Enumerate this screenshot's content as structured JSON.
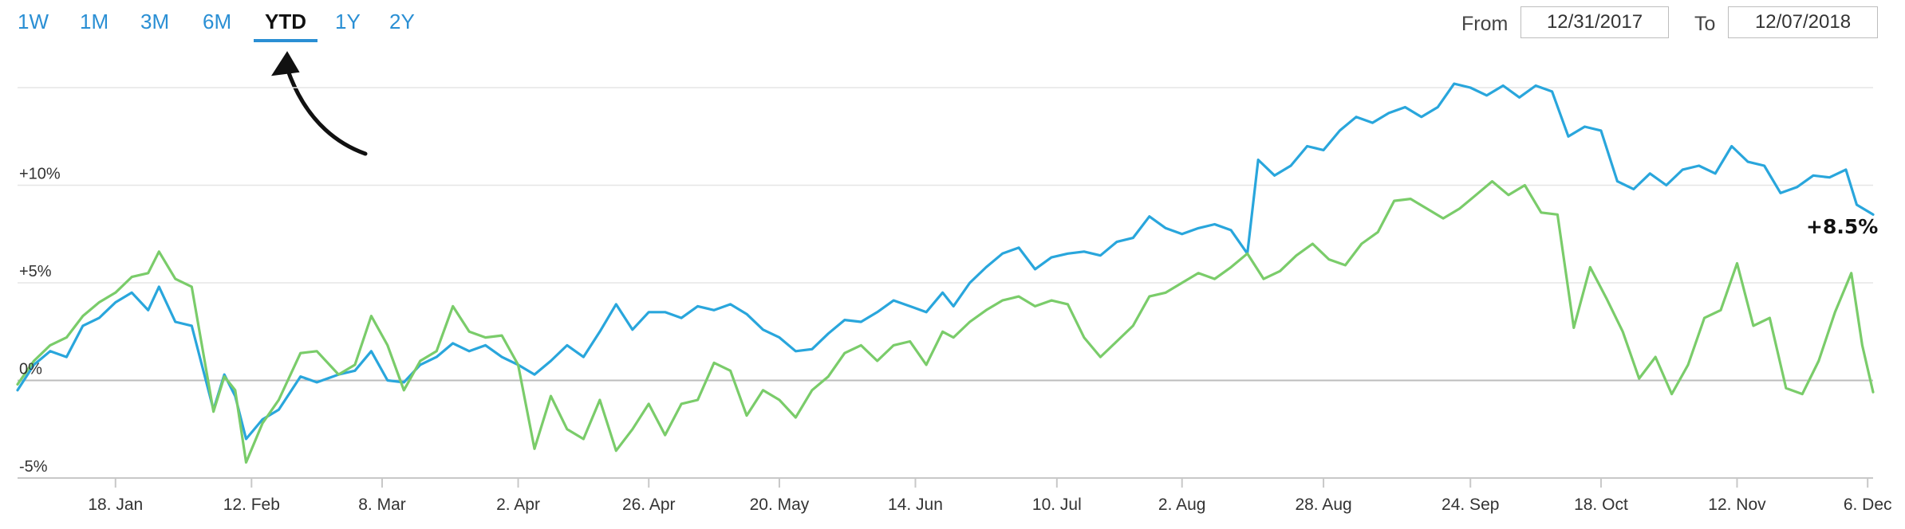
{
  "range_tabs": [
    {
      "label": "1W",
      "active": false
    },
    {
      "label": "1M",
      "active": false
    },
    {
      "label": "3M",
      "active": false
    },
    {
      "label": "6M",
      "active": false
    },
    {
      "label": "YTD",
      "active": true
    },
    {
      "label": "1Y",
      "active": false
    },
    {
      "label": "2Y",
      "active": false
    }
  ],
  "date_range": {
    "from_label": "From",
    "from_value": "12/31/2017",
    "to_label": "To",
    "to_value": "12/07/2018"
  },
  "colors": {
    "series_blue": "#29a6dc",
    "series_green": "#7acc6a",
    "tab_link": "#2a8fd4",
    "grid": "#e6e6e6",
    "zero_line": "#bdbdbd"
  },
  "chart_data": {
    "type": "line",
    "title": "",
    "xlabel": "",
    "ylabel": "",
    "x_range": [
      "2017-12-31",
      "2018-12-07"
    ],
    "ylim": [
      -5,
      15
    ],
    "y_ticks": [
      {
        "value": -5,
        "label": "-5%"
      },
      {
        "value": 0,
        "label": "0%"
      },
      {
        "value": 5,
        "label": "+5%"
      },
      {
        "value": 10,
        "label": "+10%"
      }
    ],
    "x_ticks": [
      {
        "date": "2018-01-18",
        "label": "18. Jan"
      },
      {
        "date": "2018-02-12",
        "label": "12. Feb"
      },
      {
        "date": "2018-03-08",
        "label": "8. Mar"
      },
      {
        "date": "2018-04-02",
        "label": "2. Apr"
      },
      {
        "date": "2018-04-26",
        "label": "26. Apr"
      },
      {
        "date": "2018-05-20",
        "label": "20. May"
      },
      {
        "date": "2018-06-14",
        "label": "14. Jun"
      },
      {
        "date": "2018-07-10",
        "label": "10. Jul"
      },
      {
        "date": "2018-08-02",
        "label": "2. Aug"
      },
      {
        "date": "2018-08-28",
        "label": "28. Aug"
      },
      {
        "date": "2018-09-24",
        "label": "24. Sep"
      },
      {
        "date": "2018-10-18",
        "label": "18. Oct"
      },
      {
        "date": "2018-11-12",
        "label": "12. Nov"
      },
      {
        "date": "2018-12-06",
        "label": "6. Dec"
      }
    ],
    "grid": true,
    "legend": "none",
    "end_label": "+8.5%",
    "series": [
      {
        "color": "#29a6dc",
        "points": [
          [
            "2017-12-31",
            -0.5
          ],
          [
            "2018-01-03",
            0.8
          ],
          [
            "2018-01-06",
            1.5
          ],
          [
            "2018-01-09",
            1.2
          ],
          [
            "2018-01-12",
            2.8
          ],
          [
            "2018-01-15",
            3.2
          ],
          [
            "2018-01-18",
            4.0
          ],
          [
            "2018-01-21",
            4.5
          ],
          [
            "2018-01-24",
            3.6
          ],
          [
            "2018-01-26",
            4.8
          ],
          [
            "2018-01-29",
            3.0
          ],
          [
            "2018-02-01",
            2.8
          ],
          [
            "2018-02-05",
            -1.5
          ],
          [
            "2018-02-07",
            0.3
          ],
          [
            "2018-02-09",
            -0.8
          ],
          [
            "2018-02-11",
            -3.0
          ],
          [
            "2018-02-14",
            -2.0
          ],
          [
            "2018-02-17",
            -1.5
          ],
          [
            "2018-02-21",
            0.2
          ],
          [
            "2018-02-24",
            -0.1
          ],
          [
            "2018-02-28",
            0.3
          ],
          [
            "2018-03-03",
            0.5
          ],
          [
            "2018-03-06",
            1.5
          ],
          [
            "2018-03-09",
            0.0
          ],
          [
            "2018-03-12",
            -0.1
          ],
          [
            "2018-03-15",
            0.8
          ],
          [
            "2018-03-18",
            1.2
          ],
          [
            "2018-03-21",
            1.9
          ],
          [
            "2018-03-24",
            1.5
          ],
          [
            "2018-03-27",
            1.8
          ],
          [
            "2018-03-30",
            1.2
          ],
          [
            "2018-04-02",
            0.8
          ],
          [
            "2018-04-05",
            0.3
          ],
          [
            "2018-04-08",
            1.0
          ],
          [
            "2018-04-11",
            1.8
          ],
          [
            "2018-04-14",
            1.2
          ],
          [
            "2018-04-17",
            2.5
          ],
          [
            "2018-04-20",
            3.9
          ],
          [
            "2018-04-23",
            2.6
          ],
          [
            "2018-04-26",
            3.5
          ],
          [
            "2018-04-29",
            3.5
          ],
          [
            "2018-05-02",
            3.2
          ],
          [
            "2018-05-05",
            3.8
          ],
          [
            "2018-05-08",
            3.6
          ],
          [
            "2018-05-11",
            3.9
          ],
          [
            "2018-05-14",
            3.4
          ],
          [
            "2018-05-17",
            2.6
          ],
          [
            "2018-05-20",
            2.2
          ],
          [
            "2018-05-23",
            1.5
          ],
          [
            "2018-05-26",
            1.6
          ],
          [
            "2018-05-29",
            2.4
          ],
          [
            "2018-06-01",
            3.1
          ],
          [
            "2018-06-04",
            3.0
          ],
          [
            "2018-06-07",
            3.5
          ],
          [
            "2018-06-10",
            4.1
          ],
          [
            "2018-06-13",
            3.8
          ],
          [
            "2018-06-16",
            3.5
          ],
          [
            "2018-06-19",
            4.5
          ],
          [
            "2018-06-21",
            3.8
          ],
          [
            "2018-06-24",
            5.0
          ],
          [
            "2018-06-27",
            5.8
          ],
          [
            "2018-06-30",
            6.5
          ],
          [
            "2018-07-03",
            6.8
          ],
          [
            "2018-07-06",
            5.7
          ],
          [
            "2018-07-09",
            6.3
          ],
          [
            "2018-07-12",
            6.5
          ],
          [
            "2018-07-15",
            6.6
          ],
          [
            "2018-07-18",
            6.4
          ],
          [
            "2018-07-21",
            7.1
          ],
          [
            "2018-07-24",
            7.3
          ],
          [
            "2018-07-27",
            8.4
          ],
          [
            "2018-07-30",
            7.8
          ],
          [
            "2018-08-02",
            7.5
          ],
          [
            "2018-08-05",
            7.8
          ],
          [
            "2018-08-08",
            8.0
          ],
          [
            "2018-08-11",
            7.7
          ],
          [
            "2018-08-14",
            6.5
          ],
          [
            "2018-08-16",
            11.3
          ],
          [
            "2018-08-19",
            10.5
          ],
          [
            "2018-08-22",
            11.0
          ],
          [
            "2018-08-25",
            12.0
          ],
          [
            "2018-08-28",
            11.8
          ],
          [
            "2018-08-31",
            12.8
          ],
          [
            "2018-09-03",
            13.5
          ],
          [
            "2018-09-06",
            13.2
          ],
          [
            "2018-09-09",
            13.7
          ],
          [
            "2018-09-12",
            14.0
          ],
          [
            "2018-09-15",
            13.5
          ],
          [
            "2018-09-18",
            14.0
          ],
          [
            "2018-09-21",
            15.2
          ],
          [
            "2018-09-24",
            15.0
          ],
          [
            "2018-09-27",
            14.6
          ],
          [
            "2018-09-30",
            15.1
          ],
          [
            "2018-10-03",
            14.5
          ],
          [
            "2018-10-06",
            15.1
          ],
          [
            "2018-10-09",
            14.8
          ],
          [
            "2018-10-12",
            12.5
          ],
          [
            "2018-10-15",
            13.0
          ],
          [
            "2018-10-18",
            12.8
          ],
          [
            "2018-10-21",
            10.2
          ],
          [
            "2018-10-24",
            9.8
          ],
          [
            "2018-10-27",
            10.6
          ],
          [
            "2018-10-30",
            10.0
          ],
          [
            "2018-11-02",
            10.8
          ],
          [
            "2018-11-05",
            11.0
          ],
          [
            "2018-11-08",
            10.6
          ],
          [
            "2018-11-11",
            12.0
          ],
          [
            "2018-11-14",
            11.2
          ],
          [
            "2018-11-17",
            11.0
          ],
          [
            "2018-11-20",
            9.6
          ],
          [
            "2018-11-23",
            9.9
          ],
          [
            "2018-11-26",
            10.5
          ],
          [
            "2018-11-29",
            10.4
          ],
          [
            "2018-12-02",
            10.8
          ],
          [
            "2018-12-04",
            9.0
          ],
          [
            "2018-12-07",
            8.5
          ]
        ]
      },
      {
        "color": "#7acc6a",
        "points": [
          [
            "2017-12-31",
            -0.2
          ],
          [
            "2018-01-03",
            1.0
          ],
          [
            "2018-01-06",
            1.8
          ],
          [
            "2018-01-09",
            2.2
          ],
          [
            "2018-01-12",
            3.3
          ],
          [
            "2018-01-15",
            4.0
          ],
          [
            "2018-01-18",
            4.5
          ],
          [
            "2018-01-21",
            5.3
          ],
          [
            "2018-01-24",
            5.5
          ],
          [
            "2018-01-26",
            6.6
          ],
          [
            "2018-01-29",
            5.2
          ],
          [
            "2018-02-01",
            4.8
          ],
          [
            "2018-02-05",
            -1.6
          ],
          [
            "2018-02-07",
            0.2
          ],
          [
            "2018-02-09",
            -0.5
          ],
          [
            "2018-02-11",
            -4.2
          ],
          [
            "2018-02-14",
            -2.2
          ],
          [
            "2018-02-17",
            -1.0
          ],
          [
            "2018-02-21",
            1.4
          ],
          [
            "2018-02-24",
            1.5
          ],
          [
            "2018-02-28",
            0.3
          ],
          [
            "2018-03-03",
            0.8
          ],
          [
            "2018-03-06",
            3.3
          ],
          [
            "2018-03-09",
            1.8
          ],
          [
            "2018-03-12",
            -0.5
          ],
          [
            "2018-03-15",
            1.0
          ],
          [
            "2018-03-18",
            1.5
          ],
          [
            "2018-03-21",
            3.8
          ],
          [
            "2018-03-24",
            2.5
          ],
          [
            "2018-03-27",
            2.2
          ],
          [
            "2018-03-30",
            2.3
          ],
          [
            "2018-04-02",
            0.8
          ],
          [
            "2018-04-05",
            -3.5
          ],
          [
            "2018-04-08",
            -0.8
          ],
          [
            "2018-04-11",
            -2.5
          ],
          [
            "2018-04-14",
            -3.0
          ],
          [
            "2018-04-17",
            -1.0
          ],
          [
            "2018-04-20",
            -3.6
          ],
          [
            "2018-04-23",
            -2.5
          ],
          [
            "2018-04-26",
            -1.2
          ],
          [
            "2018-04-29",
            -2.8
          ],
          [
            "2018-05-02",
            -1.2
          ],
          [
            "2018-05-05",
            -1.0
          ],
          [
            "2018-05-08",
            0.9
          ],
          [
            "2018-05-11",
            0.5
          ],
          [
            "2018-05-14",
            -1.8
          ],
          [
            "2018-05-17",
            -0.5
          ],
          [
            "2018-05-20",
            -1.0
          ],
          [
            "2018-05-23",
            -1.9
          ],
          [
            "2018-05-26",
            -0.5
          ],
          [
            "2018-05-29",
            0.2
          ],
          [
            "2018-06-01",
            1.4
          ],
          [
            "2018-06-04",
            1.8
          ],
          [
            "2018-06-07",
            1.0
          ],
          [
            "2018-06-10",
            1.8
          ],
          [
            "2018-06-13",
            2.0
          ],
          [
            "2018-06-16",
            0.8
          ],
          [
            "2018-06-19",
            2.5
          ],
          [
            "2018-06-21",
            2.2
          ],
          [
            "2018-06-24",
            3.0
          ],
          [
            "2018-06-27",
            3.6
          ],
          [
            "2018-06-30",
            4.1
          ],
          [
            "2018-07-03",
            4.3
          ],
          [
            "2018-07-06",
            3.8
          ],
          [
            "2018-07-09",
            4.1
          ],
          [
            "2018-07-12",
            3.9
          ],
          [
            "2018-07-15",
            2.2
          ],
          [
            "2018-07-18",
            1.2
          ],
          [
            "2018-07-21",
            2.0
          ],
          [
            "2018-07-24",
            2.8
          ],
          [
            "2018-07-27",
            4.3
          ],
          [
            "2018-07-30",
            4.5
          ],
          [
            "2018-08-02",
            5.0
          ],
          [
            "2018-08-05",
            5.5
          ],
          [
            "2018-08-08",
            5.2
          ],
          [
            "2018-08-11",
            5.8
          ],
          [
            "2018-08-14",
            6.5
          ],
          [
            "2018-08-17",
            5.2
          ],
          [
            "2018-08-20",
            5.6
          ],
          [
            "2018-08-23",
            6.4
          ],
          [
            "2018-08-26",
            7.0
          ],
          [
            "2018-08-29",
            6.2
          ],
          [
            "2018-09-01",
            5.9
          ],
          [
            "2018-09-04",
            7.0
          ],
          [
            "2018-09-07",
            7.6
          ],
          [
            "2018-09-10",
            9.2
          ],
          [
            "2018-09-13",
            9.3
          ],
          [
            "2018-09-16",
            8.8
          ],
          [
            "2018-09-19",
            8.3
          ],
          [
            "2018-09-22",
            8.8
          ],
          [
            "2018-09-25",
            9.5
          ],
          [
            "2018-09-28",
            10.2
          ],
          [
            "2018-10-01",
            9.5
          ],
          [
            "2018-10-04",
            10.0
          ],
          [
            "2018-10-07",
            8.6
          ],
          [
            "2018-10-10",
            8.5
          ],
          [
            "2018-10-13",
            2.7
          ],
          [
            "2018-10-16",
            5.8
          ],
          [
            "2018-10-19",
            4.2
          ],
          [
            "2018-10-22",
            2.5
          ],
          [
            "2018-10-25",
            0.1
          ],
          [
            "2018-10-28",
            1.2
          ],
          [
            "2018-10-31",
            -0.7
          ],
          [
            "2018-11-03",
            0.8
          ],
          [
            "2018-11-06",
            3.2
          ],
          [
            "2018-11-09",
            3.6
          ],
          [
            "2018-11-12",
            6.0
          ],
          [
            "2018-11-15",
            2.8
          ],
          [
            "2018-11-18",
            3.2
          ],
          [
            "2018-11-21",
            -0.4
          ],
          [
            "2018-11-24",
            -0.7
          ],
          [
            "2018-11-27",
            1.0
          ],
          [
            "2018-11-30",
            3.5
          ],
          [
            "2018-12-03",
            5.5
          ],
          [
            "2018-12-05",
            1.8
          ],
          [
            "2018-12-07",
            -0.6
          ]
        ]
      }
    ]
  }
}
